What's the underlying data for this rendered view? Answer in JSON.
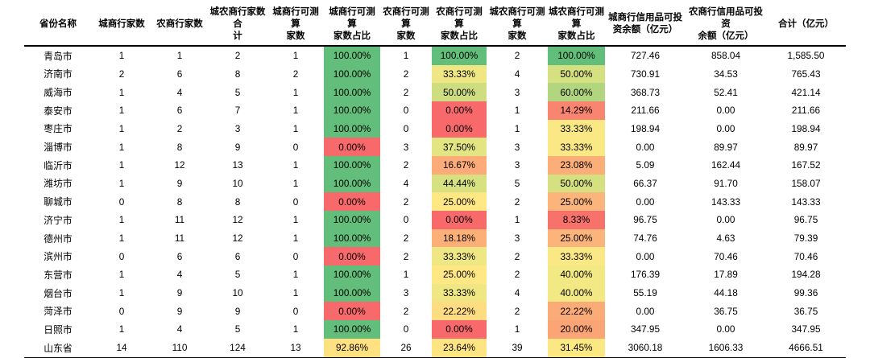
{
  "palette": {
    "scale_low": "#f8696b",
    "scale_mid": "#ffeb84",
    "scale_high": "#63be7b",
    "text": "#000000",
    "background": "#ffffff"
  },
  "chart_data": {
    "type": "table",
    "title": "",
    "columns": [
      {
        "label": "省份名称"
      },
      {
        "label": "城商行家数"
      },
      {
        "label": "农商行家数"
      },
      {
        "label": "城农商行家数合\n计"
      },
      {
        "label": "城商行可测算\n家数"
      },
      {
        "label": "城商行可测算\n家数占比"
      },
      {
        "label": "农商行可测算\n家数"
      },
      {
        "label": "农商行可测算\n家数占比"
      },
      {
        "label": "城农商行可测算\n家数"
      },
      {
        "label": "城农商行可测算\n家数占比"
      },
      {
        "label": "城商行信用品可投\n资余额（亿元）"
      },
      {
        "label": "农商行信用品可投资\n余额（亿元）"
      },
      {
        "label": "合计（亿元）"
      }
    ],
    "pct_color_columns": [
      5,
      7,
      9
    ],
    "rows": [
      {
        "values": [
          "青岛市",
          "1",
          "1",
          "2",
          "1",
          "100.00%",
          "1",
          "100.00%",
          "2",
          "100.00%",
          "727.46",
          "858.04",
          "1,585.50"
        ],
        "pct_colors": [
          "#63be7b",
          "#63be7b",
          "#63be7b"
        ]
      },
      {
        "values": [
          "济南市",
          "2",
          "6",
          "8",
          "2",
          "100.00%",
          "2",
          "33.33%",
          "4",
          "50.00%",
          "730.91",
          "34.53",
          "765.43"
        ],
        "pct_colors": [
          "#63be7b",
          "#eee783",
          "#d5e081"
        ]
      },
      {
        "values": [
          "威海市",
          "1",
          "4",
          "5",
          "1",
          "100.00%",
          "2",
          "50.00%",
          "3",
          "60.00%",
          "368.73",
          "52.41",
          "421.14"
        ],
        "pct_colors": [
          "#63be7b",
          "#cfdd81",
          "#b2d57f"
        ]
      },
      {
        "values": [
          "泰安市",
          "1",
          "6",
          "7",
          "1",
          "100.00%",
          "0",
          "0.00%",
          "1",
          "14.29%",
          "211.66",
          "0.00",
          "211.66"
        ],
        "pct_colors": [
          "#63be7b",
          "#f8696b",
          "#f98570"
        ]
      },
      {
        "values": [
          "枣庄市",
          "1",
          "2",
          "3",
          "1",
          "100.00%",
          "0",
          "0.00%",
          "1",
          "33.33%",
          "198.94",
          "0.00",
          "198.94"
        ],
        "pct_colors": [
          "#63be7b",
          "#f8696b",
          "#fae884"
        ]
      },
      {
        "values": [
          "淄博市",
          "1",
          "8",
          "9",
          "0",
          "0.00%",
          "3",
          "37.50%",
          "3",
          "33.33%",
          "0.00",
          "89.97",
          "89.97"
        ],
        "pct_colors": [
          "#f8696b",
          "#e3e583",
          "#fae884"
        ]
      },
      {
        "values": [
          "临沂市",
          "1",
          "12",
          "13",
          "1",
          "100.00%",
          "2",
          "16.67%",
          "3",
          "23.08%",
          "5.09",
          "162.44",
          "167.52"
        ],
        "pct_colors": [
          "#63be7b",
          "#fcab79",
          "#fcae79"
        ]
      },
      {
        "values": [
          "潍坊市",
          "1",
          "9",
          "10",
          "1",
          "100.00%",
          "4",
          "44.44%",
          "5",
          "50.00%",
          "66.37",
          "91.70",
          "158.07"
        ],
        "pct_colors": [
          "#63be7b",
          "#d8e182",
          "#d5e081"
        ]
      },
      {
        "values": [
          "聊城市",
          "0",
          "8",
          "8",
          "0",
          "0.00%",
          "2",
          "25.00%",
          "2",
          "25.00%",
          "0.00",
          "143.33",
          "143.33"
        ],
        "pct_colors": [
          "#f8696b",
          "#ffe884",
          "#fbb47b"
        ]
      },
      {
        "values": [
          "济宁市",
          "1",
          "11",
          "12",
          "1",
          "100.00%",
          "0",
          "0.00%",
          "1",
          "8.33%",
          "96.75",
          "0.00",
          "96.75"
        ],
        "pct_colors": [
          "#63be7b",
          "#f8696b",
          "#f8726c"
        ]
      },
      {
        "values": [
          "德州市",
          "1",
          "11",
          "12",
          "1",
          "100.00%",
          "2",
          "18.18%",
          "3",
          "25.00%",
          "74.76",
          "4.63",
          "79.39"
        ],
        "pct_colors": [
          "#63be7b",
          "#fcb077",
          "#fbb47b"
        ]
      },
      {
        "values": [
          "滨州市",
          "0",
          "6",
          "6",
          "0",
          "0.00%",
          "2",
          "33.33%",
          "2",
          "33.33%",
          "0.00",
          "70.46",
          "70.46"
        ],
        "pct_colors": [
          "#f8696b",
          "#eee783",
          "#fae884"
        ]
      },
      {
        "values": [
          "东营市",
          "1",
          "4",
          "5",
          "1",
          "100.00%",
          "1",
          "25.00%",
          "2",
          "40.00%",
          "176.39",
          "17.89",
          "194.28"
        ],
        "pct_colors": [
          "#63be7b",
          "#ffe884",
          "#f2e884"
        ]
      },
      {
        "values": [
          "烟台市",
          "1",
          "9",
          "10",
          "1",
          "100.00%",
          "3",
          "33.33%",
          "4",
          "40.00%",
          "55.19",
          "44.18",
          "99.36"
        ],
        "pct_colors": [
          "#63be7b",
          "#eee783",
          "#f2e884"
        ]
      },
      {
        "values": [
          "菏泽市",
          "0",
          "9",
          "9",
          "0",
          "0.00%",
          "2",
          "22.22%",
          "2",
          "22.22%",
          "0.00",
          "36.75",
          "36.75"
        ],
        "pct_colors": [
          "#f8696b",
          "#fedc81",
          "#fbab77"
        ]
      },
      {
        "values": [
          "日照市",
          "1",
          "4",
          "5",
          "1",
          "100.00%",
          "0",
          "0.00%",
          "1",
          "20.00%",
          "347.95",
          "0.00",
          "347.95"
        ],
        "pct_colors": [
          "#63be7b",
          "#f8696b",
          "#fba476"
        ]
      },
      {
        "values": [
          "山东省",
          "14",
          "110",
          "124",
          "13",
          "92.86%",
          "26",
          "23.64%",
          "39",
          "31.45%",
          "3060.18",
          "1606.33",
          "4666.51"
        ],
        "pct_colors": [
          "#ffe182",
          "#ffe483",
          "#fce883"
        ]
      }
    ]
  }
}
